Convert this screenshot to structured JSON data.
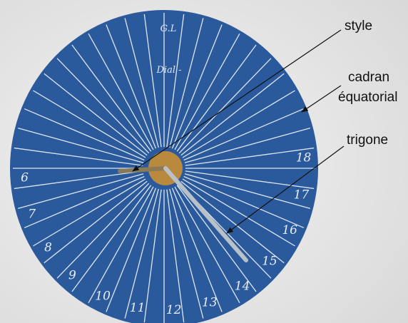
{
  "labels": {
    "style": "style",
    "cadran": [
      "cadran",
      "équatorial"
    ],
    "trigone": "trigone"
  },
  "dial": {
    "initials": "G.L",
    "inscription": "Dial -",
    "hours": [
      "6",
      "7",
      "8",
      "9",
      "10",
      "11",
      "12",
      "13",
      "14",
      "15",
      "16",
      "17",
      "18"
    ]
  }
}
